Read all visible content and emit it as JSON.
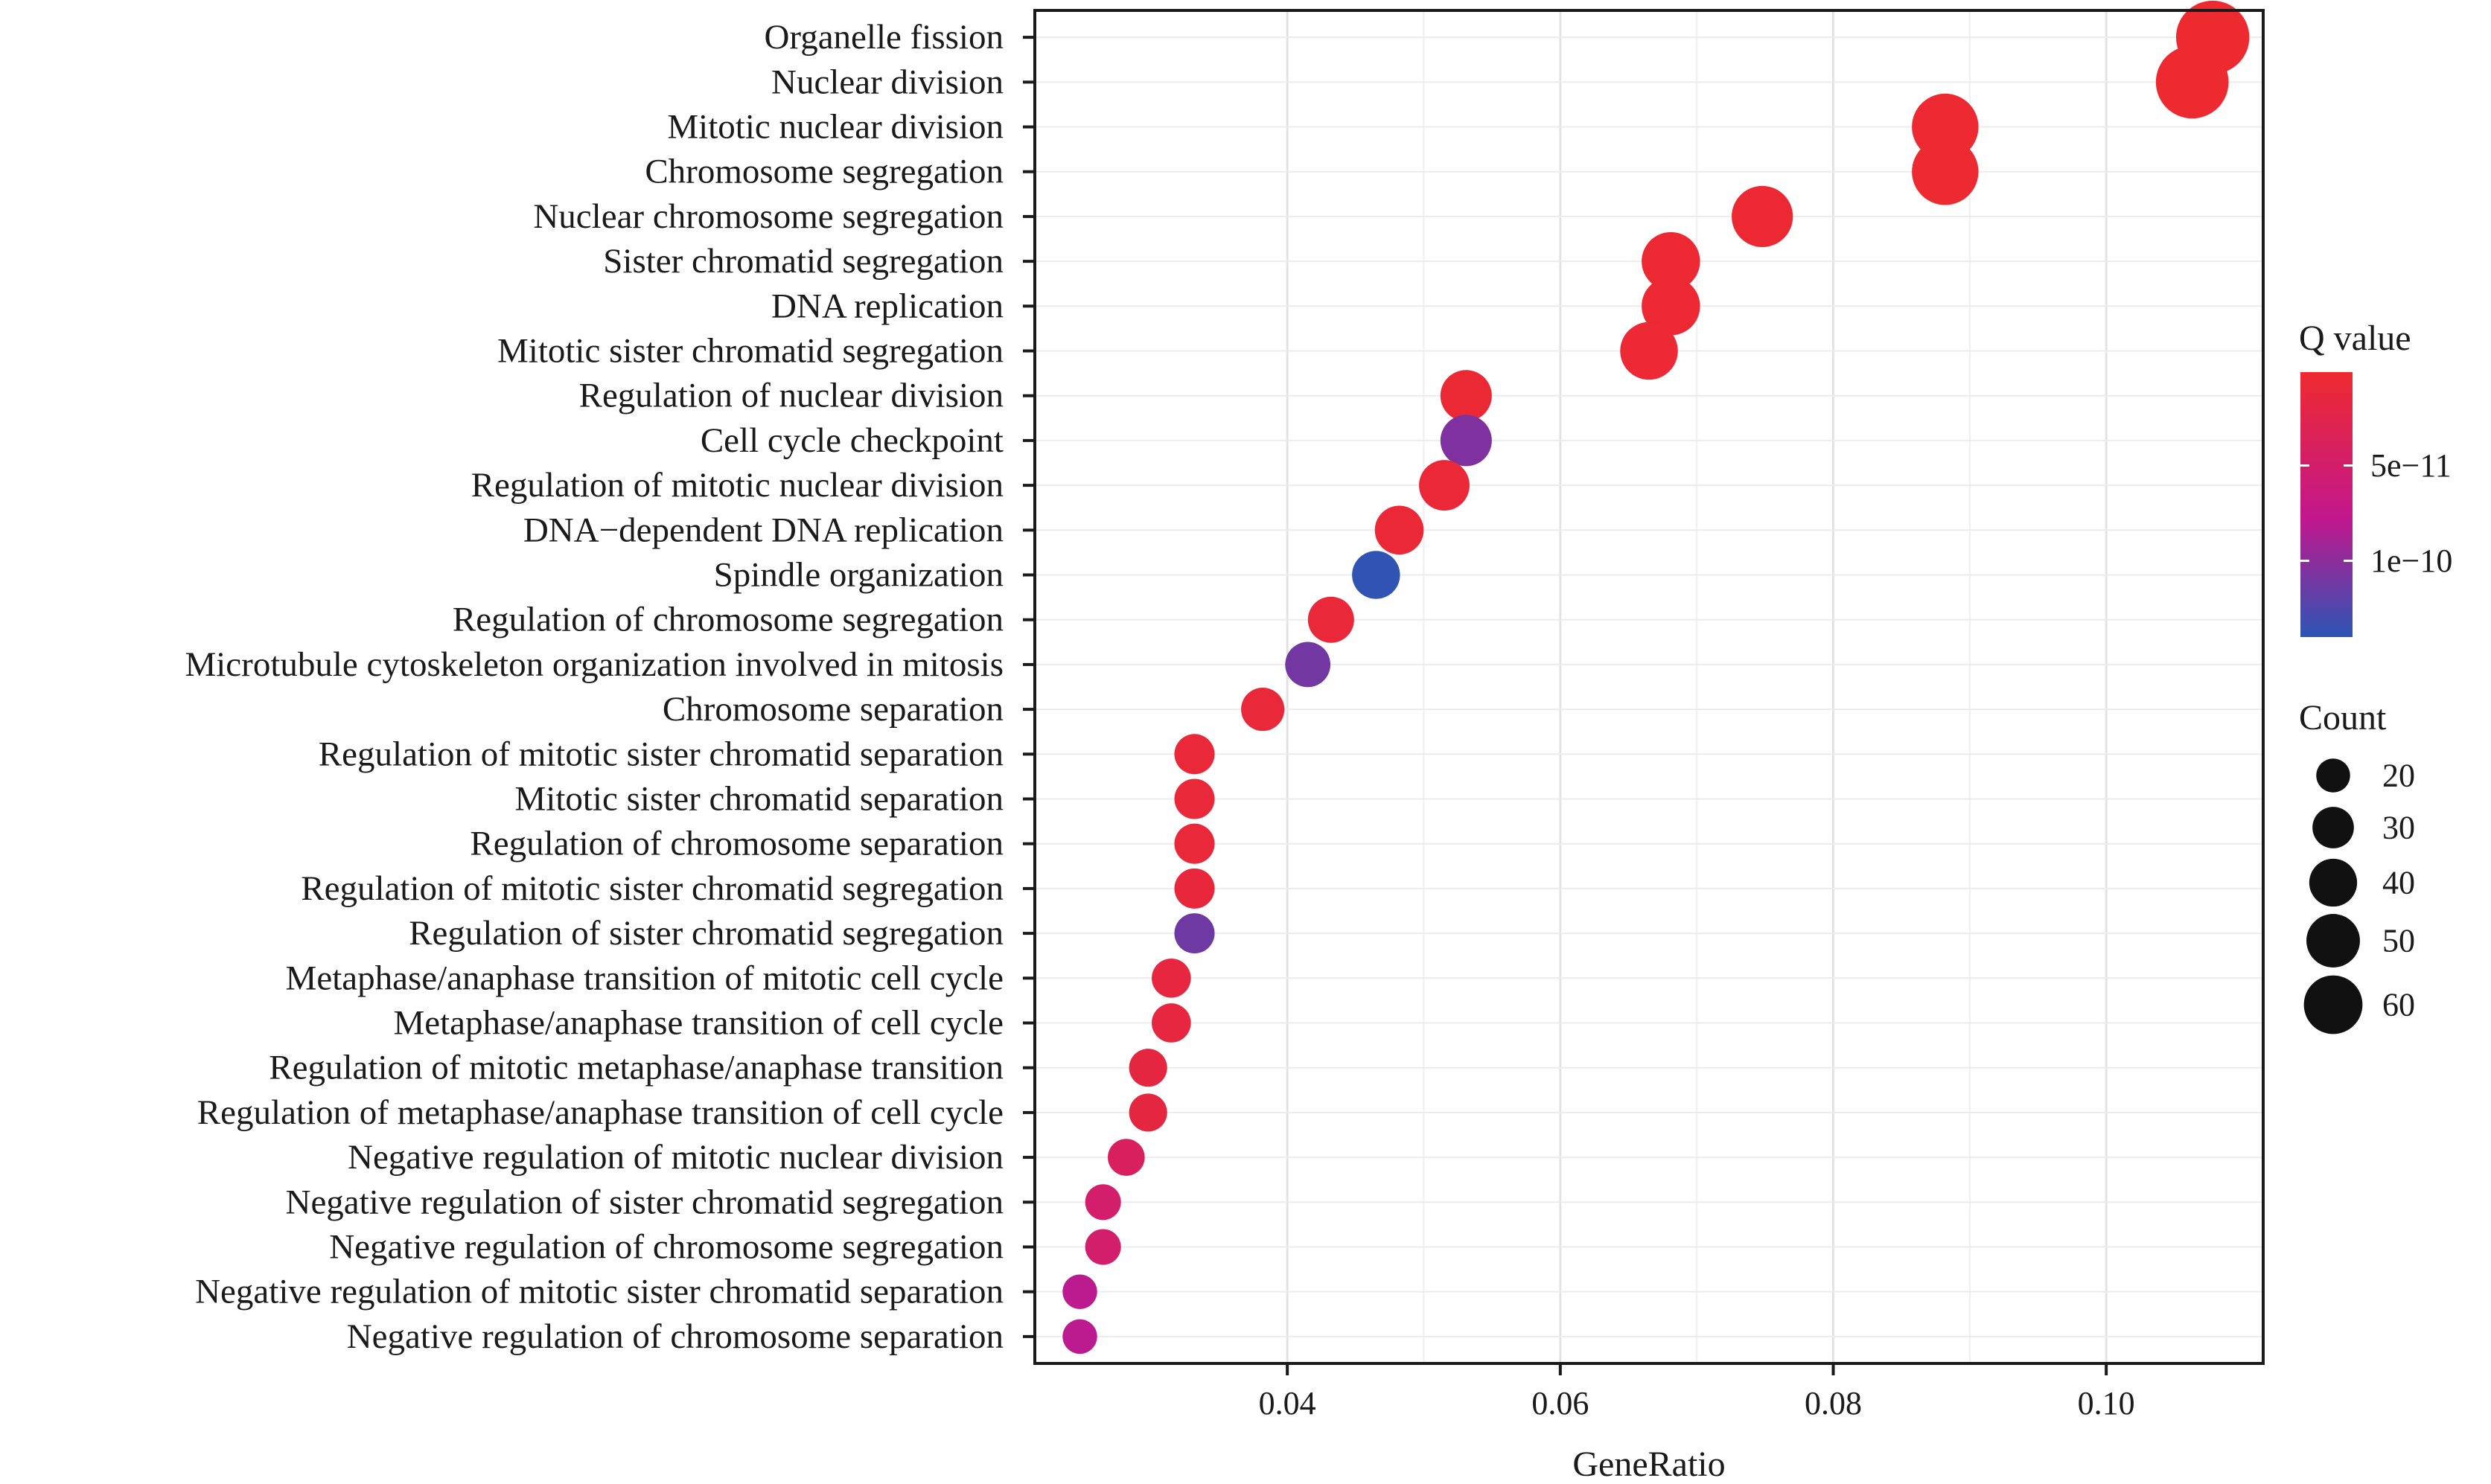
{
  "chart_data": {
    "type": "scatter",
    "xlabel": "GeneRatio",
    "ylabel": "",
    "xlim": [
      0.0215,
      0.1115
    ],
    "x_ticks": [
      {
        "value": 0.04,
        "label": "0.04"
      },
      {
        "value": 0.06,
        "label": "0.06"
      },
      {
        "value": 0.08,
        "label": "0.08"
      },
      {
        "value": 0.1,
        "label": "0.10"
      }
    ],
    "grid": true,
    "legend_position": "right",
    "color_legend": {
      "title": "Q value",
      "ticks": [
        {
          "value": 5e-11,
          "label": "5e−11"
        },
        {
          "value": 1e-10,
          "label": "1e−10"
        }
      ],
      "min": 1e-12,
      "max": 1.4e-10,
      "color_low": "#ee2a2f",
      "color_mid": "#c2178d",
      "color_high": "#2b55b5"
    },
    "size_legend": {
      "title": "Count",
      "entries": [
        {
          "value": 20,
          "label": "20"
        },
        {
          "value": 30,
          "label": "30"
        },
        {
          "value": 40,
          "label": "40"
        },
        {
          "value": 50,
          "label": "50"
        },
        {
          "value": 60,
          "label": "60"
        }
      ]
    },
    "points": [
      {
        "term": "Organelle fission",
        "gene_ratio": 0.1078,
        "count": 63,
        "q_value": 2e-12
      },
      {
        "term": "Nuclear division",
        "gene_ratio": 0.1063,
        "count": 62,
        "q_value": 2e-12
      },
      {
        "term": "Mitotic nuclear division",
        "gene_ratio": 0.0882,
        "count": 52,
        "q_value": 3e-12
      },
      {
        "term": "Chromosome segregation",
        "gene_ratio": 0.0882,
        "count": 52,
        "q_value": 3e-12
      },
      {
        "term": "Nuclear chromosome segregation",
        "gene_ratio": 0.0748,
        "count": 44,
        "q_value": 4e-12
      },
      {
        "term": "Sister chromatid segregation",
        "gene_ratio": 0.0681,
        "count": 40,
        "q_value": 4e-12
      },
      {
        "term": "DNA replication",
        "gene_ratio": 0.0681,
        "count": 40,
        "q_value": 4e-12
      },
      {
        "term": "Mitotic sister chromatid segregation",
        "gene_ratio": 0.0665,
        "count": 39,
        "q_value": 5e-12
      },
      {
        "term": "Regulation of nuclear division",
        "gene_ratio": 0.0531,
        "count": 31,
        "q_value": 6e-12
      },
      {
        "term": "Cell cycle checkpoint",
        "gene_ratio": 0.0531,
        "count": 31,
        "q_value": 1.05e-10
      },
      {
        "term": "Regulation of mitotic nuclear division",
        "gene_ratio": 0.0515,
        "count": 30,
        "q_value": 8e-12
      },
      {
        "term": "DNA−dependent DNA replication",
        "gene_ratio": 0.0482,
        "count": 28,
        "q_value": 8e-12
      },
      {
        "term": "Spindle organization",
        "gene_ratio": 0.0465,
        "count": 27,
        "q_value": 1.38e-10
      },
      {
        "term": "Regulation of chromosome segregation",
        "gene_ratio": 0.0432,
        "count": 25,
        "q_value": 9e-12
      },
      {
        "term": "Microtubule cytoskeleton organization involved in mitosis",
        "gene_ratio": 0.0415,
        "count": 24,
        "q_value": 1.1e-10
      },
      {
        "term": "Chromosome separation",
        "gene_ratio": 0.0382,
        "count": 22,
        "q_value": 1e-11
      },
      {
        "term": "Regulation of mitotic sister chromatid separation",
        "gene_ratio": 0.0332,
        "count": 19,
        "q_value": 1e-11
      },
      {
        "term": "Mitotic sister chromatid separation",
        "gene_ratio": 0.0332,
        "count": 19,
        "q_value": 1e-11
      },
      {
        "term": "Regulation of chromosome separation",
        "gene_ratio": 0.0332,
        "count": 19,
        "q_value": 1e-11
      },
      {
        "term": "Regulation of mitotic sister chromatid segregation",
        "gene_ratio": 0.0332,
        "count": 19,
        "q_value": 1.2e-11
      },
      {
        "term": "Regulation of sister chromatid segregation",
        "gene_ratio": 0.0332,
        "count": 19,
        "q_value": 1.12e-10
      },
      {
        "term": "Metaphase/anaphase transition of mitotic cell cycle",
        "gene_ratio": 0.0315,
        "count": 18,
        "q_value": 1.4e-11
      },
      {
        "term": "Metaphase/anaphase transition of cell cycle",
        "gene_ratio": 0.0315,
        "count": 18,
        "q_value": 1.4e-11
      },
      {
        "term": "Regulation of mitotic metaphase/anaphase transition",
        "gene_ratio": 0.0298,
        "count": 17,
        "q_value": 1.6e-11
      },
      {
        "term": "Regulation of metaphase/anaphase transition of cell cycle",
        "gene_ratio": 0.0298,
        "count": 17,
        "q_value": 1.6e-11
      },
      {
        "term": "Negative regulation of mitotic nuclear division",
        "gene_ratio": 0.0282,
        "count": 16,
        "q_value": 4e-11
      },
      {
        "term": "Negative regulation of sister chromatid segregation",
        "gene_ratio": 0.0265,
        "count": 15,
        "q_value": 5e-11
      },
      {
        "term": "Negative regulation of chromosome segregation",
        "gene_ratio": 0.0265,
        "count": 15,
        "q_value": 5e-11
      },
      {
        "term": "Negative regulation of mitotic sister chromatid separation",
        "gene_ratio": 0.0248,
        "count": 14,
        "q_value": 8e-11
      },
      {
        "term": "Negative regulation of chromosome separation",
        "gene_ratio": 0.0248,
        "count": 14,
        "q_value": 8e-11
      }
    ]
  }
}
